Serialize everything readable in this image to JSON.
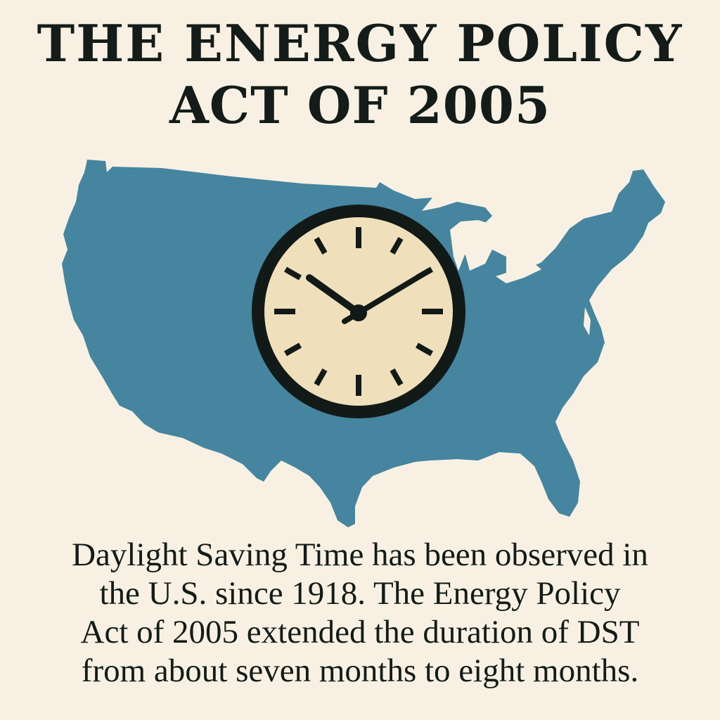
{
  "title": {
    "line1": "THE ENERGY POLICY",
    "line2": "ACT OF 2005"
  },
  "illustration": {
    "map_icon": "usa-map-icon",
    "clock_icon": "wall-clock-icon",
    "map_color": "#45859f",
    "clock_face_color": "#efe0bb",
    "clock_rim_color": "#121a17"
  },
  "caption": {
    "line1": "Daylight Saving Time has been observed in",
    "line2": "the U.S. since 1918. The Energy Policy",
    "line3": "Act of 2005 extended the duration of DST",
    "line4": "from about seven months to eight months."
  },
  "colors": {
    "background": "#f8f1e3",
    "text": "#131c18"
  }
}
